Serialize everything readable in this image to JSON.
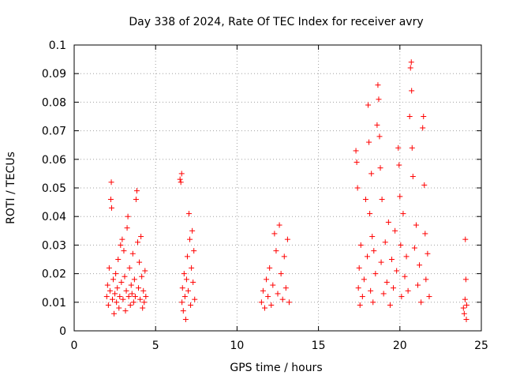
{
  "chart_data": {
    "type": "scatter",
    "title": "Day 338 of 2024, Rate Of TEC Index for receiver avry",
    "xlabel": "GPS time / hours",
    "ylabel": "ROTI / TECUs",
    "xlim": [
      0,
      25
    ],
    "ylim": [
      0,
      0.1
    ],
    "x_ticks": [
      0,
      5,
      10,
      15,
      20,
      25
    ],
    "x_tick_labels": [
      "0",
      "5",
      "10",
      "15",
      "20",
      "25"
    ],
    "y_ticks": [
      0,
      0.01,
      0.02,
      0.03,
      0.04,
      0.05,
      0.06,
      0.07,
      0.08,
      0.09,
      0.1
    ],
    "y_tick_labels": [
      "0",
      "0.01",
      "0.02",
      "0.03",
      "0.04",
      "0.05",
      "0.06",
      "0.07",
      "0.08",
      "0.09",
      "0.1"
    ],
    "grid": true,
    "marker": "+",
    "color": "#ff0000",
    "series": [
      {
        "name": "ROTI",
        "points": [
          [
            2.0,
            0.012
          ],
          [
            2.05,
            0.016
          ],
          [
            2.1,
            0.009
          ],
          [
            2.15,
            0.022
          ],
          [
            2.2,
            0.014
          ],
          [
            2.25,
            0.046
          ],
          [
            2.28,
            0.052
          ],
          [
            2.3,
            0.043
          ],
          [
            2.35,
            0.011
          ],
          [
            2.4,
            0.018
          ],
          [
            2.45,
            0.006
          ],
          [
            2.5,
            0.013
          ],
          [
            2.55,
            0.02
          ],
          [
            2.6,
            0.01
          ],
          [
            2.65,
            0.015
          ],
          [
            2.7,
            0.025
          ],
          [
            2.75,
            0.008
          ],
          [
            2.8,
            0.012
          ],
          [
            2.85,
            0.03
          ],
          [
            2.9,
            0.017
          ],
          [
            2.95,
            0.032
          ],
          [
            3.0,
            0.011
          ],
          [
            3.05,
            0.028
          ],
          [
            3.1,
            0.019
          ],
          [
            3.15,
            0.007
          ],
          [
            3.2,
            0.014
          ],
          [
            3.25,
            0.036
          ],
          [
            3.3,
            0.04
          ],
          [
            3.35,
            0.012
          ],
          [
            3.4,
            0.022
          ],
          [
            3.45,
            0.009
          ],
          [
            3.5,
            0.016
          ],
          [
            3.55,
            0.013
          ],
          [
            3.6,
            0.027
          ],
          [
            3.65,
            0.01
          ],
          [
            3.7,
            0.018
          ],
          [
            3.75,
            0.012
          ],
          [
            3.8,
            0.046
          ],
          [
            3.85,
            0.049
          ],
          [
            3.9,
            0.031
          ],
          [
            3.95,
            0.015
          ],
          [
            4.0,
            0.024
          ],
          [
            4.05,
            0.011
          ],
          [
            4.1,
            0.033
          ],
          [
            4.15,
            0.019
          ],
          [
            4.2,
            0.008
          ],
          [
            4.25,
            0.014
          ],
          [
            4.3,
            0.01
          ],
          [
            4.35,
            0.021
          ],
          [
            4.4,
            0.012
          ],
          [
            6.5,
            0.053
          ],
          [
            6.55,
            0.052
          ],
          [
            6.6,
            0.055
          ],
          [
            6.62,
            0.01
          ],
          [
            6.65,
            0.015
          ],
          [
            6.7,
            0.007
          ],
          [
            6.75,
            0.02
          ],
          [
            6.8,
            0.012
          ],
          [
            6.85,
            0.004
          ],
          [
            6.9,
            0.018
          ],
          [
            6.95,
            0.026
          ],
          [
            7.0,
            0.014
          ],
          [
            7.05,
            0.041
          ],
          [
            7.1,
            0.032
          ],
          [
            7.15,
            0.009
          ],
          [
            7.2,
            0.022
          ],
          [
            7.25,
            0.035
          ],
          [
            7.3,
            0.017
          ],
          [
            7.35,
            0.028
          ],
          [
            7.4,
            0.011
          ],
          [
            11.5,
            0.01
          ],
          [
            11.6,
            0.014
          ],
          [
            11.7,
            0.008
          ],
          [
            11.8,
            0.018
          ],
          [
            11.9,
            0.012
          ],
          [
            12.0,
            0.022
          ],
          [
            12.1,
            0.009
          ],
          [
            12.2,
            0.016
          ],
          [
            12.3,
            0.034
          ],
          [
            12.4,
            0.028
          ],
          [
            12.5,
            0.013
          ],
          [
            12.6,
            0.037
          ],
          [
            12.7,
            0.02
          ],
          [
            12.8,
            0.011
          ],
          [
            12.9,
            0.026
          ],
          [
            13.0,
            0.015
          ],
          [
            13.1,
            0.032
          ],
          [
            13.2,
            0.01
          ],
          [
            17.3,
            0.063
          ],
          [
            17.35,
            0.059
          ],
          [
            17.4,
            0.05
          ],
          [
            17.45,
            0.015
          ],
          [
            17.5,
            0.022
          ],
          [
            17.55,
            0.009
          ],
          [
            17.6,
            0.03
          ],
          [
            17.7,
            0.012
          ],
          [
            17.8,
            0.018
          ],
          [
            17.9,
            0.046
          ],
          [
            18.0,
            0.026
          ],
          [
            18.05,
            0.079
          ],
          [
            18.1,
            0.066
          ],
          [
            18.15,
            0.041
          ],
          [
            18.2,
            0.014
          ],
          [
            18.25,
            0.055
          ],
          [
            18.3,
            0.033
          ],
          [
            18.35,
            0.01
          ],
          [
            18.4,
            0.028
          ],
          [
            18.5,
            0.02
          ],
          [
            18.6,
            0.072
          ],
          [
            18.65,
            0.086
          ],
          [
            18.7,
            0.081
          ],
          [
            18.75,
            0.068
          ],
          [
            18.8,
            0.057
          ],
          [
            18.85,
            0.024
          ],
          [
            18.9,
            0.046
          ],
          [
            19.0,
            0.013
          ],
          [
            19.1,
            0.031
          ],
          [
            19.2,
            0.017
          ],
          [
            19.3,
            0.038
          ],
          [
            19.4,
            0.009
          ],
          [
            19.5,
            0.025
          ],
          [
            19.6,
            0.015
          ],
          [
            19.7,
            0.035
          ],
          [
            19.8,
            0.021
          ],
          [
            19.9,
            0.064
          ],
          [
            19.95,
            0.058
          ],
          [
            20.0,
            0.047
          ],
          [
            20.05,
            0.03
          ],
          [
            20.1,
            0.012
          ],
          [
            20.2,
            0.041
          ],
          [
            20.3,
            0.019
          ],
          [
            20.4,
            0.026
          ],
          [
            20.5,
            0.014
          ],
          [
            20.6,
            0.075
          ],
          [
            20.65,
            0.092
          ],
          [
            20.7,
            0.094
          ],
          [
            20.72,
            0.084
          ],
          [
            20.75,
            0.064
          ],
          [
            20.8,
            0.054
          ],
          [
            20.9,
            0.029
          ],
          [
            21.0,
            0.037
          ],
          [
            21.1,
            0.016
          ],
          [
            21.2,
            0.023
          ],
          [
            21.3,
            0.01
          ],
          [
            21.4,
            0.071
          ],
          [
            21.45,
            0.075
          ],
          [
            21.5,
            0.051
          ],
          [
            21.55,
            0.034
          ],
          [
            21.6,
            0.018
          ],
          [
            21.7,
            0.027
          ],
          [
            21.8,
            0.012
          ],
          [
            23.9,
            0.008
          ],
          [
            23.95,
            0.006
          ],
          [
            24.0,
            0.011
          ],
          [
            24.02,
            0.032
          ],
          [
            24.05,
            0.018
          ],
          [
            24.08,
            0.004
          ],
          [
            24.1,
            0.009
          ]
        ]
      }
    ]
  }
}
